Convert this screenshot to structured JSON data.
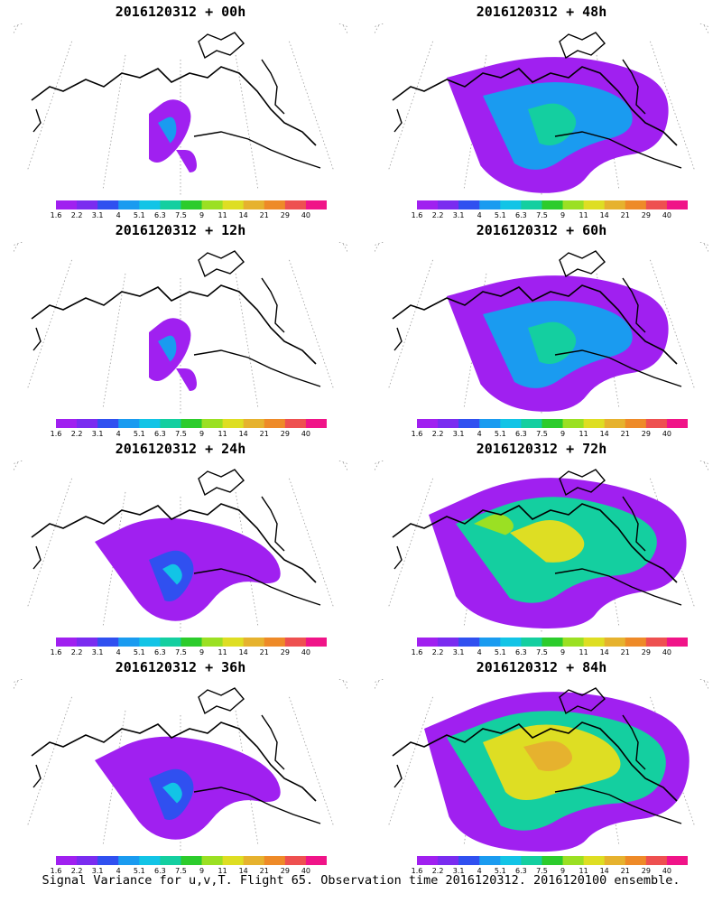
{
  "chart_data": {
    "type": "heatmap",
    "description_caption": "Signal Variance for u,v,T. Flight 65. Observation time 2016120312. 2016120100 ensemble.",
    "colorbar": {
      "labels": [
        "1.6",
        "2.2",
        "3.1",
        "4",
        "5.1",
        "6.3",
        "7.5",
        "9",
        "11",
        "14",
        "21",
        "29",
        "40"
      ],
      "colors": [
        "#a020f0",
        "#7a2cf0",
        "#3050f0",
        "#1a9bf0",
        "#12c4e6",
        "#14cfa0",
        "#2ccc2c",
        "#9be023",
        "#dede23",
        "#e6b22e",
        "#ee8a28",
        "#ee5050",
        "#f01488"
      ]
    },
    "panels": [
      {
        "title": "2016120312 + 00h",
        "intensity": 1
      },
      {
        "title": "2016120312 + 12h",
        "intensity": 1
      },
      {
        "title": "2016120312 + 24h",
        "intensity": 2
      },
      {
        "title": "2016120312 + 36h",
        "intensity": 2
      },
      {
        "title": "2016120312 + 48h",
        "intensity": 3
      },
      {
        "title": "2016120312 + 60h",
        "intensity": 3
      },
      {
        "title": "2016120312 + 72h",
        "intensity": 4
      },
      {
        "title": "2016120312 + 84h",
        "intensity": 5
      }
    ]
  }
}
